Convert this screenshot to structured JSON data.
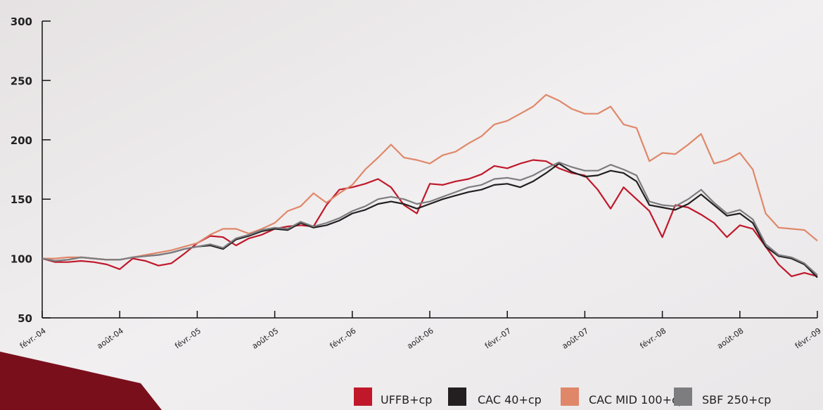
{
  "chart_data": {
    "type": "line",
    "categories": [
      "févr.-04",
      null,
      null,
      null,
      null,
      null,
      "août-04",
      null,
      null,
      null,
      null,
      null,
      "févr.-05",
      null,
      null,
      null,
      null,
      null,
      "août-05",
      null,
      null,
      null,
      null,
      null,
      "févr.-06",
      null,
      null,
      null,
      null,
      null,
      "août-06",
      null,
      null,
      null,
      null,
      null,
      "févr.-07",
      null,
      null,
      null,
      null,
      null,
      "août-07",
      null,
      null,
      null,
      null,
      null,
      "févr.-08",
      null,
      null,
      null,
      null,
      null,
      "août-08",
      null,
      null,
      null,
      null,
      null,
      "févr.-09"
    ],
    "series": [
      {
        "name": "UFFB+cp",
        "color": "#c0182a",
        "values": [
          100,
          97,
          97,
          98,
          97,
          95,
          91,
          100,
          98,
          94,
          96,
          104,
          113,
          119,
          118,
          111,
          117,
          120,
          125,
          127,
          128,
          127,
          145,
          158,
          160,
          163,
          167,
          160,
          145,
          138,
          163,
          162,
          165,
          167,
          171,
          178,
          176,
          180,
          183,
          182,
          176,
          172,
          170,
          158,
          142,
          160,
          150,
          140,
          118,
          145,
          143,
          137,
          130,
          118,
          128,
          125,
          110,
          95,
          85,
          88,
          85
        ]
      },
      {
        "name": "CAC 40+cp",
        "color": "#231f20",
        "values": [
          100,
          98,
          99,
          101,
          100,
          99,
          99,
          101,
          102,
          103,
          105,
          108,
          110,
          111,
          108,
          116,
          119,
          123,
          125,
          124,
          130,
          126,
          128,
          132,
          138,
          141,
          146,
          148,
          146,
          142,
          146,
          150,
          153,
          156,
          158,
          162,
          163,
          160,
          165,
          172,
          180,
          173,
          169,
          170,
          174,
          172,
          165,
          145,
          143,
          141,
          146,
          154,
          145,
          136,
          138,
          130,
          110,
          102,
          100,
          95,
          84
        ]
      },
      {
        "name": "CAC MID 100+cp",
        "color": "#e0876a",
        "values": [
          100,
          100,
          101,
          101,
          100,
          99,
          99,
          101,
          103,
          105,
          107,
          110,
          113,
          120,
          125,
          125,
          121,
          125,
          130,
          140,
          144,
          155,
          147,
          155,
          162,
          175,
          185,
          196,
          185,
          183,
          180,
          187,
          190,
          197,
          203,
          213,
          216,
          222,
          228,
          238,
          233,
          226,
          222,
          222,
          228,
          213,
          210,
          182,
          189,
          188,
          196,
          205,
          180,
          183,
          189,
          175,
          138,
          126,
          125,
          124,
          115
        ]
      },
      {
        "name": "SBF 250+cp",
        "color": "#7d7d80",
        "values": [
          100,
          98,
          99,
          101,
          100,
          99,
          99,
          101,
          102,
          103,
          105,
          108,
          110,
          112,
          109,
          117,
          120,
          124,
          126,
          125,
          131,
          127,
          130,
          134,
          140,
          144,
          150,
          152,
          150,
          146,
          148,
          152,
          156,
          160,
          162,
          167,
          168,
          166,
          170,
          176,
          181,
          177,
          174,
          174,
          179,
          175,
          170,
          148,
          145,
          144,
          150,
          158,
          147,
          138,
          141,
          133,
          112,
          103,
          101,
          96,
          86
        ]
      }
    ],
    "ylim": [
      50,
      300
    ],
    "yticks": [
      50,
      100,
      150,
      200,
      250,
      300
    ],
    "grid": false
  }
}
